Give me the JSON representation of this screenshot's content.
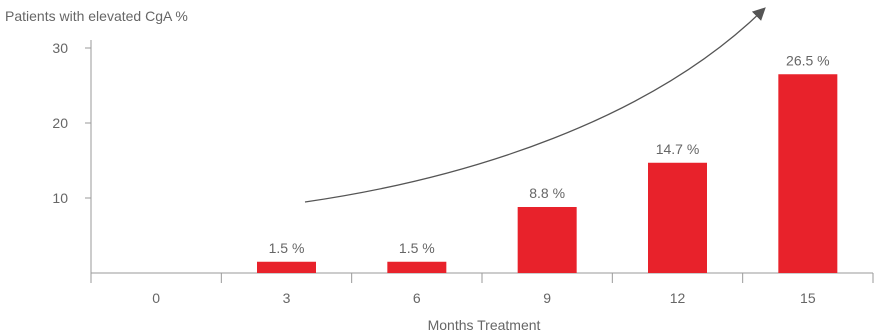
{
  "chart_data": {
    "type": "bar",
    "ylabel": "Patients with elevated CgA %",
    "xlabel": "Months Treatment",
    "categories": [
      "0",
      "3",
      "6",
      "9",
      "12",
      "15"
    ],
    "values": [
      0,
      1.5,
      1.5,
      8.8,
      14.7,
      26.5
    ],
    "data_labels": [
      "",
      "1.5 %",
      "1.5 %",
      "8.8 %",
      "14.7 %",
      "26.5 %"
    ],
    "ylim": [
      0,
      30
    ],
    "yticks": [
      "10",
      "20",
      "30"
    ],
    "grid": false,
    "legend": "none",
    "bar_color": "#e8222b",
    "axis_color": "#9a9a9a",
    "annotation": "trend-arrow"
  }
}
